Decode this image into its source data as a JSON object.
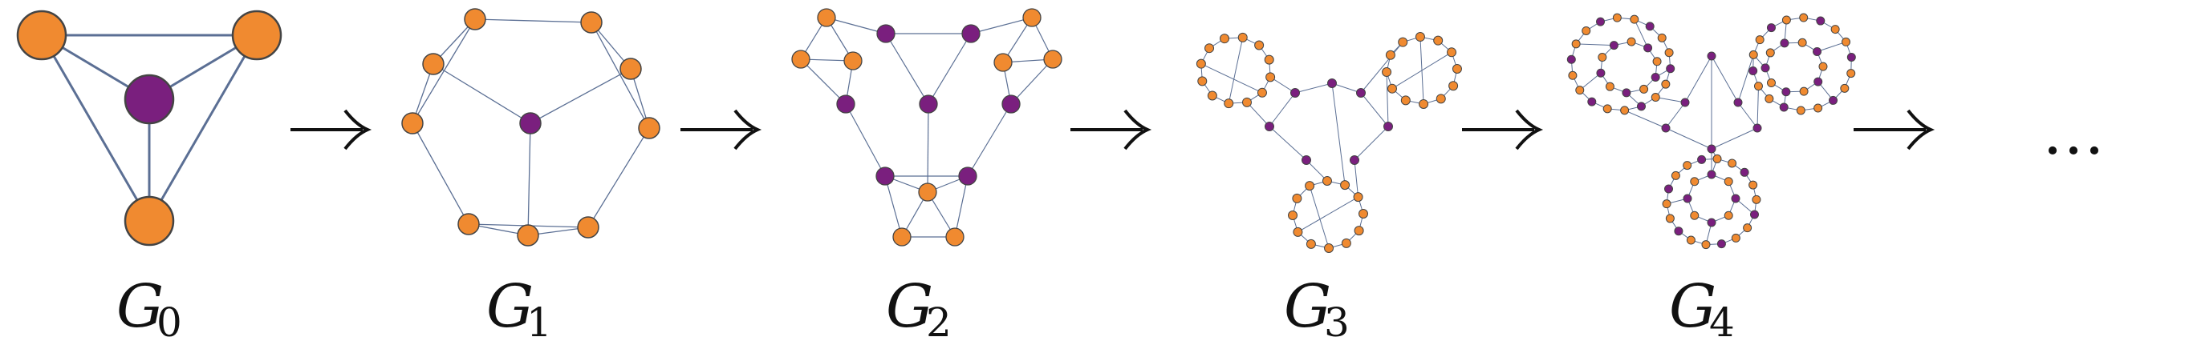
{
  "colors": {
    "orange": "#f08a30",
    "purple": "#7a1f7e",
    "edge": "#5b6f94",
    "stroke": "#444444"
  },
  "labels": [
    {
      "letter": "G",
      "sub": "0"
    },
    {
      "letter": "G",
      "sub": "1"
    },
    {
      "letter": "G",
      "sub": "2"
    },
    {
      "letter": "G",
      "sub": "3"
    },
    {
      "letter": "G",
      "sub": "4"
    }
  ],
  "arrow_glyph": "→",
  "ellipsis": "…"
}
